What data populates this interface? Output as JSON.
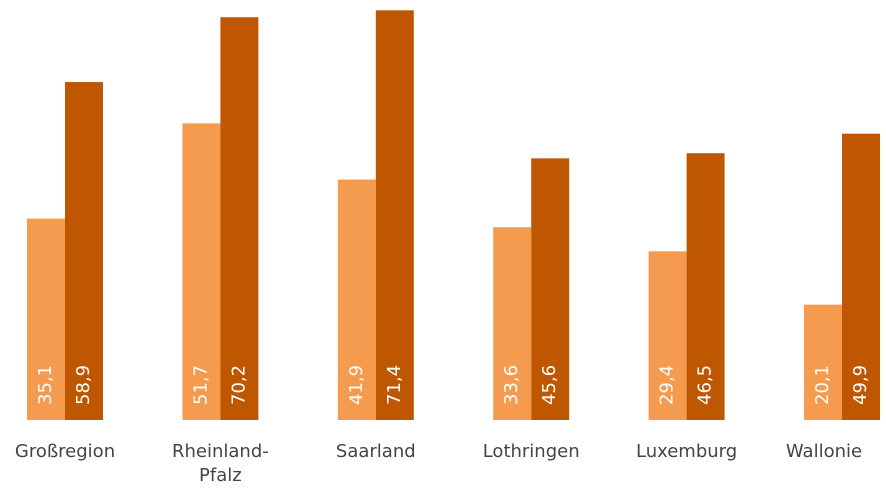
{
  "chart_data": {
    "type": "bar",
    "categories": [
      "Großregion",
      "Rheinland-Pfalz",
      "Saarland",
      "Lothringen",
      "Luxemburg",
      "Wallonie"
    ],
    "series": [
      {
        "color": "#f59b50",
        "values": [
          35.1,
          51.7,
          41.9,
          33.6,
          29.4,
          20.1
        ],
        "value_labels": [
          "35,1",
          "51,7",
          "41,9",
          "33,6",
          "29,4",
          "20,1"
        ]
      },
      {
        "color": "#bf5700",
        "values": [
          58.9,
          70.2,
          71.4,
          45.6,
          46.5,
          49.9
        ],
        "value_labels": [
          "58,9",
          "70,2",
          "71,4",
          "45,6",
          "46,5",
          "49,9"
        ]
      }
    ],
    "ylim": [
      0,
      73.2
    ]
  }
}
